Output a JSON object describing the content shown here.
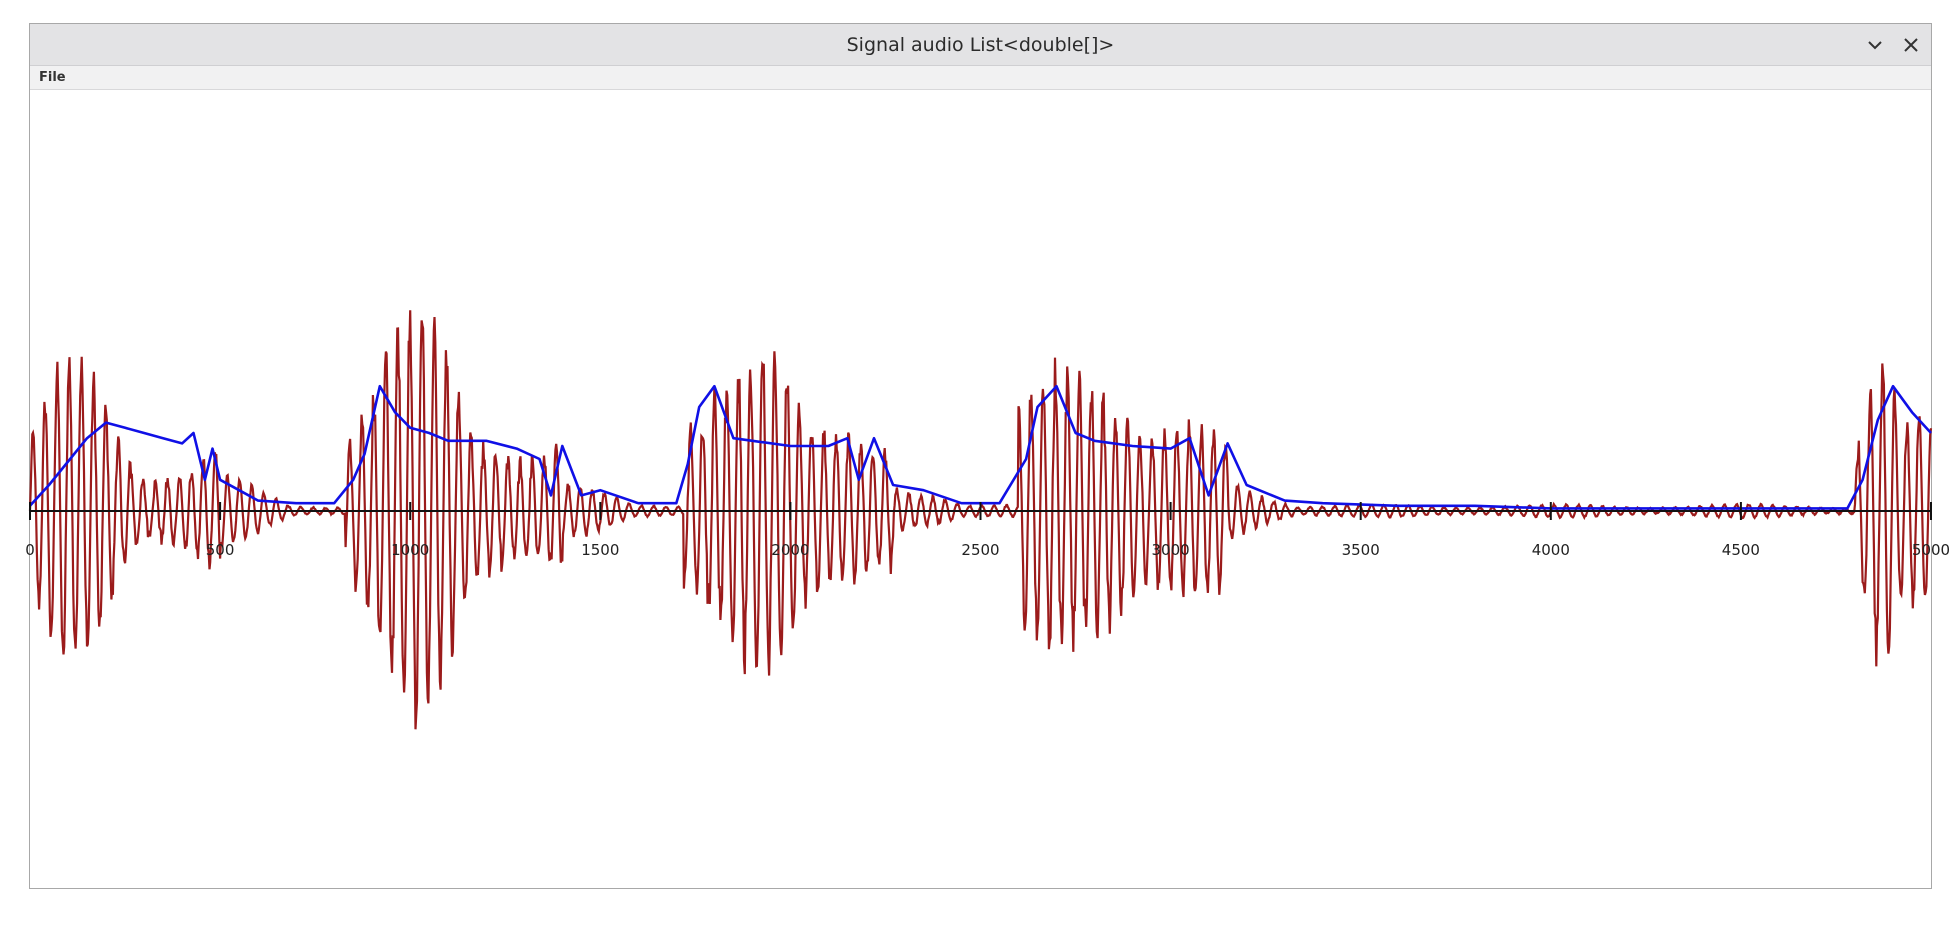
{
  "window": {
    "title": "Signal audio List<double[]>",
    "minimize_icon": "chevron-down-icon",
    "close_icon": "close-icon"
  },
  "menu": {
    "items": [
      {
        "label": "File"
      }
    ]
  },
  "chart_data": {
    "type": "line",
    "title": "",
    "xlabel": "",
    "ylabel": "",
    "xlim": [
      0,
      5000
    ],
    "xticks": [
      0,
      500,
      1000,
      1500,
      2000,
      2500,
      3000,
      3500,
      4000,
      4500,
      5000
    ],
    "tick_labels": [
      "0",
      "500",
      "1000",
      "1500",
      "2000",
      "2500",
      "3000",
      "3500",
      "4000",
      "4500",
      "5000"
    ],
    "grid": false,
    "legend": "none",
    "series": [
      {
        "color": "#9b1b1b",
        "kind": "signal",
        "bursts": [
          {
            "start": 0,
            "end": 500,
            "amplitude": 0.55
          },
          {
            "start": 830,
            "end": 1400,
            "amplitude": 0.8
          },
          {
            "start": 1720,
            "end": 2270,
            "amplitude": 0.8
          },
          {
            "start": 2600,
            "end": 3150,
            "amplitude": 0.8
          },
          {
            "start": 4800,
            "end": 5000,
            "amplitude": 0.75
          }
        ]
      },
      {
        "color": "#1010e6",
        "kind": "envelope",
        "x": [
          0,
          50,
          150,
          200,
          250,
          300,
          350,
          400,
          430,
          460,
          480,
          500,
          550,
          600,
          700,
          800,
          850,
          880,
          920,
          960,
          1000,
          1050,
          1100,
          1200,
          1280,
          1340,
          1370,
          1400,
          1450,
          1500,
          1600,
          1700,
          1730,
          1760,
          1800,
          1850,
          1900,
          2000,
          2100,
          2150,
          2180,
          2220,
          2270,
          2350,
          2450,
          2550,
          2620,
          2650,
          2700,
          2750,
          2800,
          2900,
          3000,
          3050,
          3100,
          3150,
          3200,
          3300,
          3400,
          3600,
          3800,
          4000,
          4200,
          4400,
          4600,
          4780,
          4820,
          4860,
          4900,
          4950,
          5000
        ],
        "y": [
          0.02,
          0.1,
          0.28,
          0.34,
          0.32,
          0.3,
          0.28,
          0.26,
          0.3,
          0.12,
          0.24,
          0.12,
          0.08,
          0.04,
          0.03,
          0.03,
          0.12,
          0.22,
          0.48,
          0.38,
          0.32,
          0.3,
          0.27,
          0.27,
          0.24,
          0.2,
          0.06,
          0.25,
          0.06,
          0.08,
          0.03,
          0.03,
          0.18,
          0.4,
          0.48,
          0.28,
          0.27,
          0.25,
          0.25,
          0.28,
          0.12,
          0.28,
          0.1,
          0.08,
          0.03,
          0.03,
          0.2,
          0.4,
          0.48,
          0.3,
          0.27,
          0.25,
          0.24,
          0.28,
          0.06,
          0.26,
          0.1,
          0.04,
          0.03,
          0.02,
          0.02,
          0.01,
          0.01,
          0.01,
          0.01,
          0.01,
          0.12,
          0.35,
          0.48,
          0.38,
          0.3
        ]
      }
    ]
  }
}
